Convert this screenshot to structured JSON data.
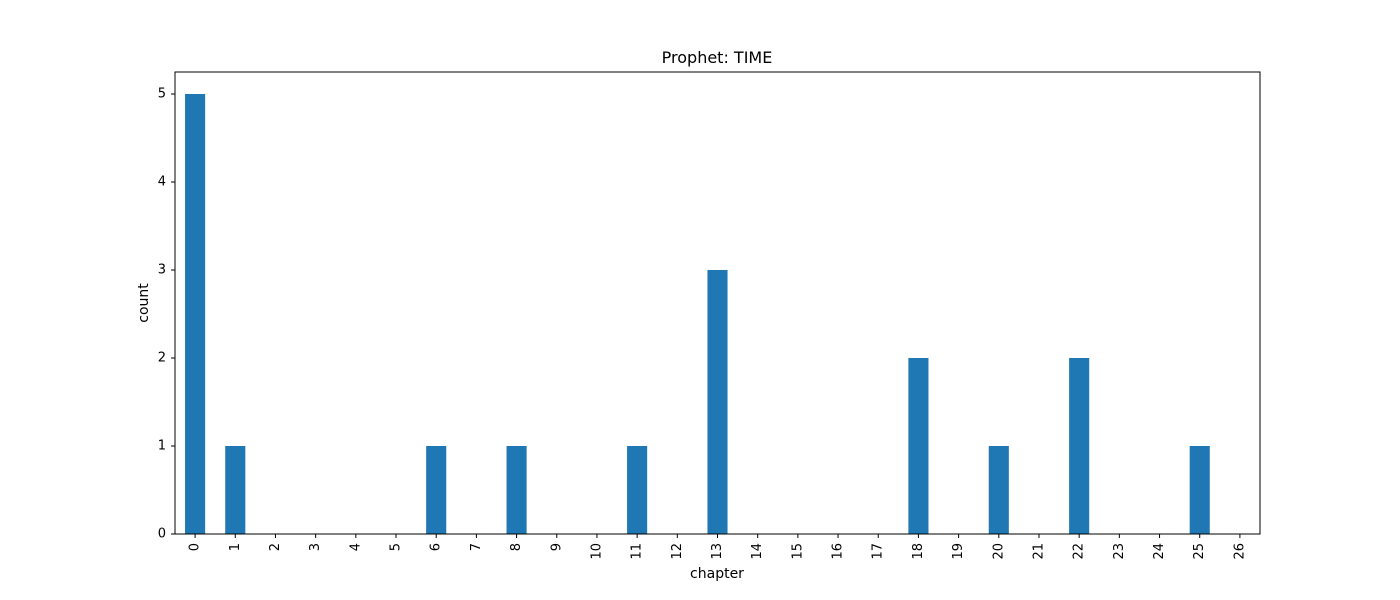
{
  "chart_data": {
    "type": "bar",
    "title": "Prophet: TIME",
    "xlabel": "chapter",
    "ylabel": "count",
    "categories": [
      "0",
      "1",
      "2",
      "3",
      "4",
      "5",
      "6",
      "7",
      "8",
      "9",
      "10",
      "11",
      "12",
      "13",
      "14",
      "15",
      "16",
      "17",
      "18",
      "19",
      "20",
      "21",
      "22",
      "23",
      "24",
      "25",
      "26"
    ],
    "values": [
      5,
      1,
      0,
      0,
      0,
      0,
      1,
      0,
      1,
      0,
      0,
      1,
      0,
      3,
      0,
      0,
      0,
      0,
      2,
      0,
      1,
      0,
      2,
      0,
      0,
      1,
      0
    ],
    "ylim": [
      0,
      5.25
    ],
    "yticks": [
      0,
      1,
      2,
      3,
      4,
      5
    ],
    "bar_color": "#1f77b4",
    "grid": false,
    "legend": "none"
  }
}
